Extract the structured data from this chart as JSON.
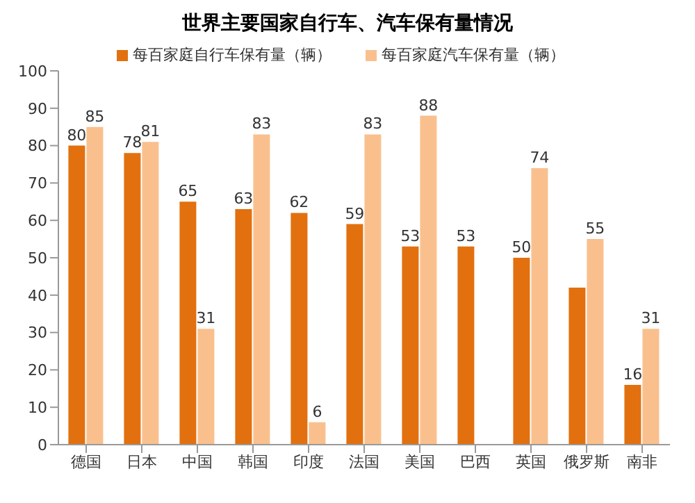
{
  "chart_data": {
    "type": "bar",
    "title": "世界主要国家自行车、汽车保有量情况",
    "categories": [
      "德国",
      "日本",
      "中国",
      "韩国",
      "印度",
      "法国",
      "美国",
      "巴西",
      "英国",
      "俄罗斯",
      "南非"
    ],
    "series": [
      {
        "name": "每百家庭自行车保有量（辆）",
        "color": "#e2700f",
        "values": [
          80,
          78,
          65,
          63,
          62,
          59,
          53,
          53,
          50,
          42,
          16
        ],
        "value_labels": [
          "80",
          "78",
          "65",
          "63",
          "62",
          "59",
          "53",
          "53",
          "50",
          null,
          "16"
        ]
      },
      {
        "name": "每百家庭汽车保有量（辆）",
        "color": "#f9c08e",
        "values": [
          85,
          81,
          31,
          83,
          6,
          83,
          88,
          null,
          74,
          55,
          31
        ],
        "value_labels": [
          "85",
          "81",
          "31",
          "83",
          "6",
          "83",
          "88",
          null,
          "74",
          "55",
          "31"
        ]
      }
    ],
    "ylim": [
      0,
      100
    ],
    "yticks": [
      0,
      10,
      20,
      30,
      40,
      50,
      60,
      70,
      80,
      90,
      100
    ],
    "grid": false,
    "legend": "top"
  }
}
